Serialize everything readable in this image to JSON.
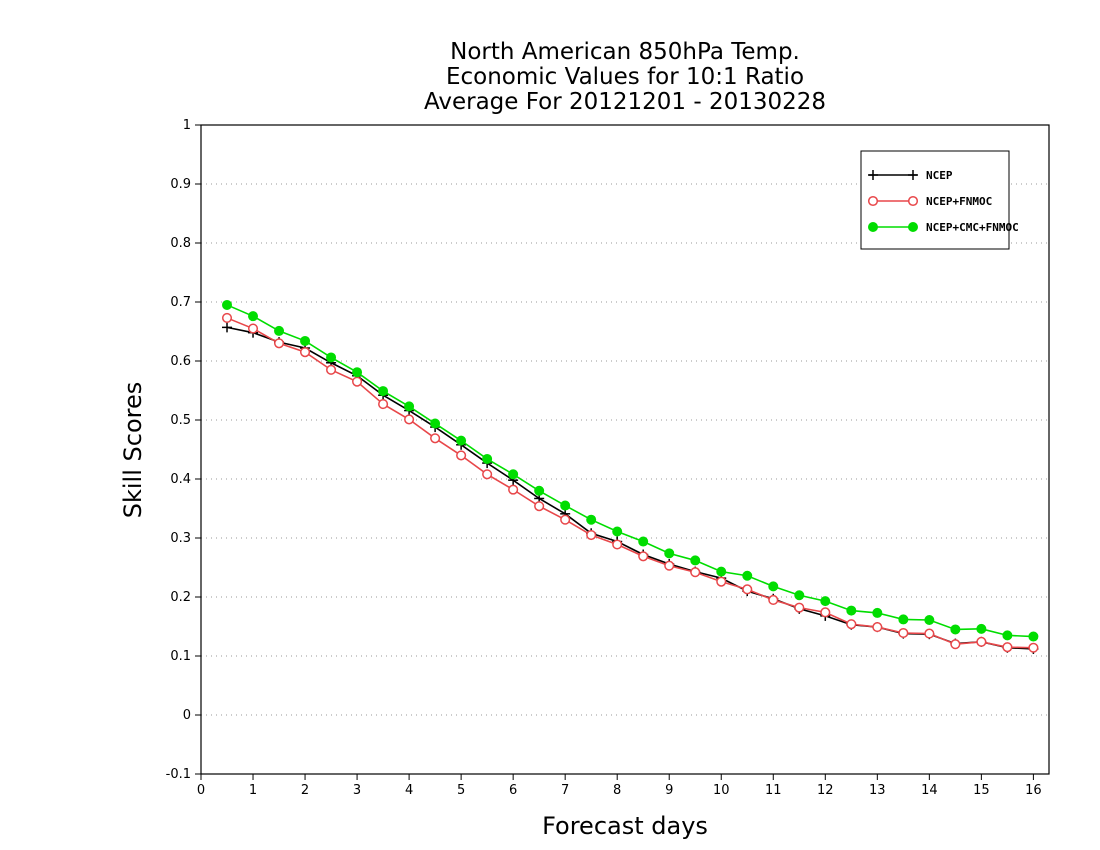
{
  "chart_data": {
    "type": "line",
    "title_lines": [
      "North American 850hPa Temp.",
      "Economic Values for 10:1 Ratio",
      "Average For 20121201 - 20130228"
    ],
    "xlabel": "Forecast days",
    "ylabel": "Skill Scores",
    "xlim": [
      0,
      16.3
    ],
    "ylim": [
      -0.1,
      1
    ],
    "x_ticks": [
      0,
      1,
      2,
      3,
      4,
      5,
      6,
      7,
      8,
      9,
      10,
      11,
      12,
      13,
      14,
      15,
      16
    ],
    "y_ticks": [
      -0.1,
      0,
      0.1,
      0.2,
      0.3,
      0.4,
      0.5,
      0.6,
      0.7,
      0.8,
      0.9,
      1
    ],
    "y_tick_labels": [
      "-0.1",
      "0",
      "0.1",
      "0.2",
      "0.3",
      "0.4",
      "0.5",
      "0.6",
      "0.7",
      "0.8",
      "0.9",
      "1"
    ],
    "grid": "horizontal-dotted",
    "legend_position": "top-right",
    "x": [
      0.5,
      1,
      1.5,
      2,
      2.5,
      3,
      3.5,
      4,
      4.5,
      5,
      5.5,
      6,
      6.5,
      7,
      7.5,
      8,
      8.5,
      9,
      9.5,
      10,
      10.5,
      11,
      11.5,
      12,
      12.5,
      13,
      13.5,
      14,
      14.5,
      15,
      15.5,
      16
    ],
    "series": [
      {
        "name": "NCEP",
        "color": "#000000",
        "marker": "plus",
        "values": [
          0.657,
          0.648,
          0.632,
          0.622,
          0.597,
          0.575,
          0.542,
          0.516,
          0.488,
          0.458,
          0.427,
          0.398,
          0.367,
          0.341,
          0.308,
          0.294,
          0.272,
          0.256,
          0.243,
          0.232,
          0.21,
          0.197,
          0.18,
          0.168,
          0.153,
          0.149,
          0.138,
          0.137,
          0.121,
          0.124,
          0.114,
          0.112
        ]
      },
      {
        "name": "NCEP+FNMOC",
        "color": "#e8474a",
        "marker": "open-circle",
        "values": [
          0.673,
          0.655,
          0.63,
          0.615,
          0.585,
          0.565,
          0.527,
          0.501,
          0.469,
          0.44,
          0.408,
          0.382,
          0.354,
          0.331,
          0.305,
          0.289,
          0.269,
          0.253,
          0.242,
          0.226,
          0.213,
          0.195,
          0.182,
          0.174,
          0.154,
          0.149,
          0.139,
          0.138,
          0.12,
          0.124,
          0.115,
          0.114
        ]
      },
      {
        "name": "NCEP+CMC+FNMOC",
        "color": "#00dd00",
        "marker": "filled-circle",
        "values": [
          0.695,
          0.676,
          0.651,
          0.634,
          0.606,
          0.581,
          0.549,
          0.523,
          0.494,
          0.465,
          0.434,
          0.408,
          0.38,
          0.355,
          0.331,
          0.311,
          0.294,
          0.274,
          0.262,
          0.243,
          0.236,
          0.218,
          0.203,
          0.193,
          0.177,
          0.173,
          0.162,
          0.161,
          0.145,
          0.146,
          0.135,
          0.133
        ]
      }
    ]
  }
}
